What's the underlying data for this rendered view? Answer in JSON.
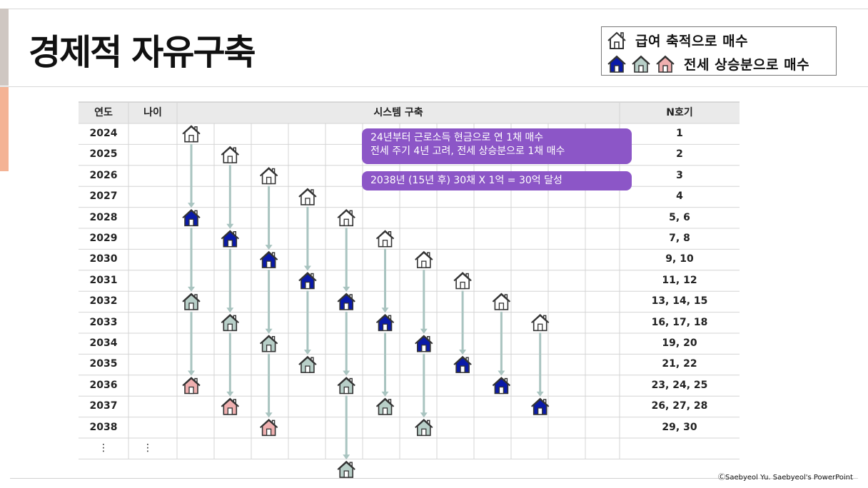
{
  "title": "경제적 자유구축",
  "legend": {
    "salary_label": "급여 축적으로 매수",
    "deposit_label": "전세 상승분으로 매수"
  },
  "colors": {
    "outline_house": "#ffffff",
    "navy_house": "#0a1aa8",
    "gray_house": "#b8cfc8",
    "pink_house": "#f0b0b0",
    "arrow": "#a9c4c0",
    "callout": "#8c56c7"
  },
  "table": {
    "headers": {
      "year": "연도",
      "age": "나이",
      "system": "시스템 구축",
      "count": "N호기"
    },
    "rows": [
      {
        "year": "2024",
        "count": "1"
      },
      {
        "year": "2025",
        "count": "2"
      },
      {
        "year": "2026",
        "count": "3"
      },
      {
        "year": "2027",
        "count": "4"
      },
      {
        "year": "2028",
        "count": "5, 6"
      },
      {
        "year": "2029",
        "count": "7, 8"
      },
      {
        "year": "2030",
        "count": "9, 10"
      },
      {
        "year": "2031",
        "count": "11, 12"
      },
      {
        "year": "2032",
        "count": "13, 14, 15"
      },
      {
        "year": "2033",
        "count": "16, 17, 18"
      },
      {
        "year": "2034",
        "count": "19, 20"
      },
      {
        "year": "2035",
        "count": "21, 22"
      },
      {
        "year": "2036",
        "count": "23, 24, 25"
      },
      {
        "year": "2037",
        "count": "26, 27, 28"
      },
      {
        "year": "2038",
        "count": "29, 30"
      }
    ],
    "ellipsis": "⋮"
  },
  "callouts": {
    "plan_line1": "24년부터 근로소득 현금으로 연 1채 매수",
    "plan_line2": "전세 주기 4년 고려, 전세 상승분으로 1채 매수",
    "goal": "2038년 (15년 후) 30채 X 1억 = 30억 달성"
  },
  "house_chains": [
    [
      "outline",
      "navy",
      "gray",
      "pink"
    ],
    [
      "outline",
      "navy",
      "gray",
      "pink"
    ],
    [
      "outline",
      "navy",
      "gray",
      "pink"
    ],
    [
      "outline",
      "navy",
      "gray"
    ],
    [
      "outline",
      "navy",
      "gray",
      "gray"
    ],
    [
      "outline",
      "navy",
      "gray"
    ],
    [
      "outline",
      "navy",
      "gray"
    ],
    [
      "outline",
      "navy"
    ],
    [
      "outline",
      "navy"
    ],
    [
      "outline",
      "navy"
    ]
  ],
  "footer": "ⒸSaebyeol Yu.  Saebyeol's PowerPoint"
}
